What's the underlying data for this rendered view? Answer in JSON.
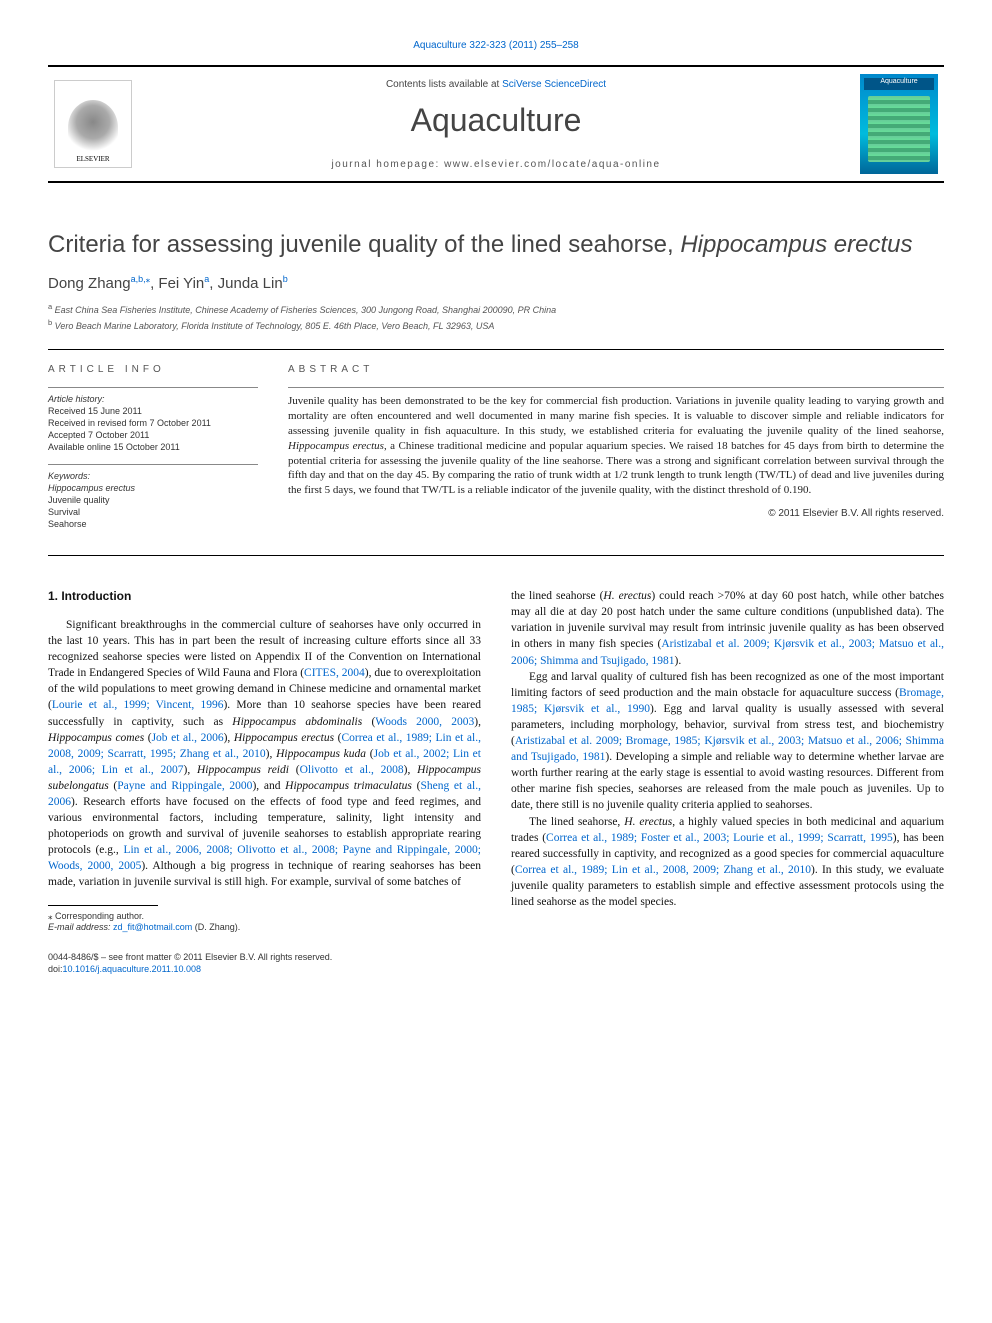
{
  "top_link": "Aquaculture 322-323 (2011) 255–258",
  "header": {
    "contents_prefix": "Contents lists available at ",
    "contents_link": "SciVerse ScienceDirect",
    "journal_name": "Aquaculture",
    "homepage_label": "journal homepage: www.elsevier.com/locate/aqua-online",
    "elsevier_label": "ELSEVIER",
    "cover_label": "Aquaculture"
  },
  "title_prefix": "Criteria for assessing juvenile quality of the lined seahorse, ",
  "title_italic": "Hippocampus erectus",
  "authors": {
    "a1_name": "Dong Zhang",
    "a1_sup": "a,b,",
    "a1_star": "⁎",
    "a2_name": ", Fei Yin",
    "a2_sup": "a",
    "a3_name": ", Junda Lin",
    "a3_sup": "b"
  },
  "affiliations": {
    "a_sup": "a",
    "a_text": " East China Sea Fisheries Institute, Chinese Academy of Fisheries Sciences, 300 Jungong Road, Shanghai 200090, PR China",
    "b_sup": "b",
    "b_text": " Vero Beach Marine Laboratory, Florida Institute of Technology, 805 E. 46th Place, Vero Beach, FL 32963, USA"
  },
  "article_info": {
    "heading": "article info",
    "history_heading": "Article history:",
    "h1": "Received 15 June 2011",
    "h2": "Received in revised form 7 October 2011",
    "h3": "Accepted 7 October 2011",
    "h4": "Available online 15 October 2011",
    "keywords_heading": "Keywords:",
    "k1": "Hippocampus erectus",
    "k2": "Juvenile quality",
    "k3": "Survival",
    "k4": "Seahorse"
  },
  "abstract": {
    "heading": "abstract",
    "text_1": "Juvenile quality has been demonstrated to be the key for commercial fish production. Variations in juvenile quality leading to varying growth and mortality are often encountered and well documented in many marine fish species. It is valuable to discover simple and reliable indicators for assessing juvenile quality in fish aquaculture. In this study, we established criteria for evaluating the juvenile quality of the lined seahorse, ",
    "text_italic_1": "Hippocampus erectus",
    "text_2": ", a Chinese traditional medicine and popular aquarium species. We raised 18 batches for 45 days from birth to determine the potential criteria for assessing the juvenile quality of the line seahorse. There was a strong and significant correlation between survival through the fifth day and that on the day 45. By comparing the ratio of trunk width at 1/2 trunk length to trunk length (TW/TL) of dead and live juveniles during the first 5 days, we found that TW/TL is a reliable indicator of the juvenile quality, with the distinct threshold of 0.190.",
    "copyright": "© 2011 Elsevier B.V. All rights reserved."
  },
  "body": {
    "intro_heading": "1. Introduction",
    "col1_p1": "Significant breakthroughs in the commercial culture of seahorses have only occurred in the last 10 years. This has in part been the result of increasing culture efforts since all 33 recognized seahorse species were listed on Appendix II of the Convention on International Trade in Endangered Species of Wild Fauna and Flora (",
    "col1_c1": "CITES, 2004",
    "col1_p2": "), due to overexploitation of the wild populations to meet growing demand in Chinese medicine and ornamental market (",
    "col1_c2": "Lourie et al., 1999; Vincent, 1996",
    "col1_p3": "). More than 10 seahorse species have been reared successfully in captivity, such as ",
    "col1_i1": "Hippocampus abdominalis",
    "col1_p4": " (",
    "col1_c3": "Woods 2000, 2003",
    "col1_p5": "), ",
    "col1_i2": "Hippocampus comes",
    "col1_p6": " (",
    "col1_c4": "Job et al., 2006",
    "col1_p7": "), ",
    "col1_i3": "Hippocampus erectus",
    "col1_p8": " (",
    "col1_c5": "Correa et al., 1989; Lin et al., 2008, 2009; Scarratt, 1995; Zhang et al., 2010",
    "col1_p9": "), ",
    "col1_i4": "Hippocampus kuda",
    "col1_p10": " (",
    "col1_c6": "Job et al., 2002; Lin et al., 2006; Lin et al., 2007",
    "col1_p11": "), ",
    "col1_i5": "Hippocampus reidi",
    "col1_p12": " (",
    "col1_c7": "Olivotto et al., 2008",
    "col1_p13": "), ",
    "col1_i6": "Hippocampus subelongatus",
    "col1_p14": " (",
    "col1_c8": "Payne and Rippingale, 2000",
    "col1_p15": "), and ",
    "col1_i7": "Hippocampus trimaculatus",
    "col1_p16": " (",
    "col1_c9": "Sheng et al., 2006",
    "col1_p17": "). Research efforts have focused on the effects of food type and feed regimes, and various environmental factors, including temperature, salinity, light intensity and photoperiods on growth and survival of juvenile seahorses to establish appropriate rearing protocols (e.g., ",
    "col1_c10": "Lin et al., 2006, 2008; Olivotto et al., 2008; Payne and Rippingale, 2000; Woods, 2000, 2005",
    "col1_p18": "). Although a big progress in technique of rearing seahorses has been made, variation in juvenile survival is still high. For example, survival of some batches of",
    "col2_p1": "the lined seahorse (",
    "col2_i1": "H. erectus",
    "col2_p2": ") could reach >70% at day 60 post hatch, while other batches may all die at day 20 post hatch under the same culture conditions (unpublished data). The variation in juvenile survival may result from intrinsic juvenile quality as has been observed in others in many fish species (",
    "col2_c1": "Aristizabal et al. 2009; Kjørsvik et al., 2003; Matsuo et al., 2006; Shimma and Tsujigado, 1981",
    "col2_p3": ").",
    "col2_p4": "Egg and larval quality of cultured fish has been recognized as one of the most important limiting factors of seed production and the main obstacle for aquaculture success (",
    "col2_c2": "Bromage, 1985; Kjørsvik et al., 1990",
    "col2_p5": "). Egg and larval quality is usually assessed with several parameters, including morphology, behavior, survival from stress test, and biochemistry (",
    "col2_c3": "Aristizabal et al. 2009; Bromage, 1985; Kjørsvik et al., 2003; Matsuo et al., 2006; Shimma and Tsujigado, 1981",
    "col2_p6": "). Developing a simple and reliable way to determine whether larvae are worth further rearing at the early stage is essential to avoid wasting resources. Different from other marine fish species, seahorses are released from the male pouch as juveniles. Up to date, there still is no juvenile quality criteria applied to seahorses.",
    "col2_p7": "The lined seahorse, ",
    "col2_i2": "H. erectus",
    "col2_p8": ", a highly valued species in both medicinal and aquarium trades (",
    "col2_c4": "Correa et al., 1989; Foster et al., 2003; Lourie et al., 1999; Scarratt, 1995",
    "col2_p9": "), has been reared successfully in captivity, and recognized as a good species for commercial aquaculture (",
    "col2_c5": "Correa et al., 1989; Lin et al., 2008, 2009; Zhang et al., 2010",
    "col2_p10": "). In this study, we evaluate juvenile quality parameters to establish simple and effective assessment protocols using the lined seahorse as the model species."
  },
  "footnote": {
    "corr": "⁎ Corresponding author.",
    "email_label": "E-mail address: ",
    "email": "zd_fit@hotmail.com",
    "email_suffix": " (D. Zhang)."
  },
  "bottom": {
    "issn": "0044-8486/$ – see front matter © 2011 Elsevier B.V. All rights reserved.",
    "doi_label": "doi:",
    "doi": "10.1016/j.aquaculture.2011.10.008"
  },
  "colors": {
    "link": "#0066cc",
    "text": "#000000",
    "muted": "#555555",
    "background": "#ffffff"
  }
}
